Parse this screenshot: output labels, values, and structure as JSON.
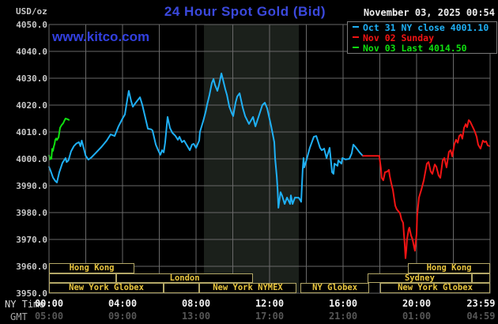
{
  "header": {
    "unit": "USD/oz",
    "title": "24 Hour Spot Gold (Bid)",
    "website": "www.kitco.com",
    "datetime": "November 03, 2025 00:54"
  },
  "legend": {
    "items": [
      {
        "label": "Oct 31 NY close 4001.10",
        "color": "#1fb0f5"
      },
      {
        "label": "Nov 02 Sunday",
        "color": "#f21414"
      },
      {
        "label": "Nov 03 Last 4014.50",
        "color": "#10df10"
      }
    ]
  },
  "colors": {
    "grid": "#696969",
    "band": "#1b201b",
    "session_border": "#b3a767",
    "session_text": "#eac63e",
    "legend_border": "#787878"
  },
  "band": {
    "start_h": 8.43,
    "end_h": 13.59
  },
  "axes": {
    "y": {
      "min": 3950,
      "max": 4050,
      "step": 10,
      "ticks": [
        {
          "label": "4050.0",
          "value": 4050
        },
        {
          "label": "4040.0",
          "value": 4040
        },
        {
          "label": "4030.0",
          "value": 4030
        },
        {
          "label": "4020.0",
          "value": 4020
        },
        {
          "label": "4010.0",
          "value": 4010
        },
        {
          "label": "4000.0",
          "value": 4000
        },
        {
          "label": "3990.0",
          "value": 3990
        },
        {
          "label": "3980.0",
          "value": 3980
        },
        {
          "label": "3970.0",
          "value": 3970
        },
        {
          "label": "3960.0",
          "value": 3960
        },
        {
          "label": "3950.0",
          "value": 3950
        }
      ]
    },
    "x": {
      "ny_caption": "NY Time",
      "gmt_caption": "GMT",
      "ticks": [
        {
          "ny": "00:00",
          "gmt": "05:00",
          "h": 0
        },
        {
          "ny": "04:00",
          "gmt": "09:00",
          "h": 4
        },
        {
          "ny": "08:00",
          "gmt": "13:00",
          "h": 8
        },
        {
          "ny": "12:00",
          "gmt": "17:00",
          "h": 12
        },
        {
          "ny": "16:00",
          "gmt": "21:00",
          "h": 16
        },
        {
          "ny": "20:00",
          "gmt": "01:00",
          "h": 20
        },
        {
          "ny": "23:59",
          "gmt": "04:59",
          "h": 23.983,
          "label_h": 23.5
        }
      ]
    }
  },
  "sessions": {
    "rows": [
      {
        "boxes": [
          {
            "label": "Hong Kong",
            "h1": 0,
            "h2": 4.65
          },
          {
            "label": "Hong Kong",
            "h1": 19.53,
            "h2": 24
          }
        ]
      },
      {
        "boxes": [
          {
            "label": "",
            "h1": 0,
            "h2": 3.66
          },
          {
            "label": "London",
            "h1": 3.66,
            "h2": 11.1
          },
          {
            "label": "Sydney",
            "h1": 17.33,
            "h2": 23.01
          },
          {
            "label": "",
            "h1": 23.01,
            "h2": 24
          }
        ]
      },
      {
        "boxes": [
          {
            "label": "New York Globex",
            "h1": 0,
            "h2": 6.24
          },
          {
            "label": "",
            "h1": 6.24,
            "h2": 8.17
          },
          {
            "label": "New York NYMEX",
            "h1": 8.17,
            "h2": 13.46
          },
          {
            "label": "NY Globex",
            "h1": 13.68,
            "h2": 17.42
          },
          {
            "label": "New York Globex",
            "h1": 18.02,
            "h2": 24
          }
        ]
      }
    ]
  },
  "chart_data": {
    "type": "line",
    "title": "24 Hour Spot Gold (Bid)",
    "ylabel": "USD/oz",
    "ylim": [
      3950,
      4050
    ],
    "xlim_hours": [
      0,
      24
    ],
    "x_unit": "NY time (hours)",
    "series": [
      {
        "name": "Oct 31 NY close 4001.10",
        "color": "#1fb0f5",
        "points": [
          [
            0,
            3997
          ],
          [
            0.09,
            3995.5
          ],
          [
            0.22,
            3993
          ],
          [
            0.34,
            3991.8
          ],
          [
            0.43,
            3991.2
          ],
          [
            0.56,
            3995
          ],
          [
            0.73,
            3998.5
          ],
          [
            0.9,
            4000.3
          ],
          [
            0.96,
            3998.8
          ],
          [
            1.06,
            3999.4
          ],
          [
            1.2,
            4002.8
          ],
          [
            1.35,
            4004.7
          ],
          [
            1.49,
            4005.7
          ],
          [
            1.63,
            4006.2
          ],
          [
            1.71,
            4004.7
          ],
          [
            1.78,
            4006.8
          ],
          [
            1.92,
            4003.2
          ],
          [
            1.99,
            4001.2
          ],
          [
            2.14,
            3999.7
          ],
          [
            2.3,
            4000.5
          ],
          [
            2.57,
            4002.4
          ],
          [
            2.85,
            4004.4
          ],
          [
            3.14,
            4006.8
          ],
          [
            3.35,
            4009.1
          ],
          [
            3.57,
            4008.5
          ],
          [
            3.78,
            4012.1
          ],
          [
            4,
            4015
          ],
          [
            4.13,
            4016.5
          ],
          [
            4.26,
            4022
          ],
          [
            4.34,
            4025.3
          ],
          [
            4.47,
            4021.5
          ],
          [
            4.56,
            4019.4
          ],
          [
            4.73,
            4021
          ],
          [
            4.95,
            4022.9
          ],
          [
            5.08,
            4020
          ],
          [
            5.2,
            4016.5
          ],
          [
            5.38,
            4011.2
          ],
          [
            5.55,
            4011
          ],
          [
            5.63,
            4010.6
          ],
          [
            5.81,
            4005.3
          ],
          [
            5.94,
            4003.2
          ],
          [
            6.06,
            4001.5
          ],
          [
            6.15,
            4003.2
          ],
          [
            6.24,
            4002.4
          ],
          [
            6.32,
            4006
          ],
          [
            6.45,
            4015.6
          ],
          [
            6.58,
            4011.5
          ],
          [
            6.71,
            4009.7
          ],
          [
            6.88,
            4008.5
          ],
          [
            7.01,
            4007.1
          ],
          [
            7.1,
            4008.2
          ],
          [
            7.23,
            4006.2
          ],
          [
            7.35,
            4006.8
          ],
          [
            7.53,
            4004.7
          ],
          [
            7.66,
            4003.2
          ],
          [
            7.78,
            4005.3
          ],
          [
            7.87,
            4005.6
          ],
          [
            8,
            4004.1
          ],
          [
            8.17,
            4006.8
          ],
          [
            8.21,
            4010
          ],
          [
            8.39,
            4014.1
          ],
          [
            8.52,
            4017.4
          ],
          [
            8.6,
            4020
          ],
          [
            8.73,
            4023.8
          ],
          [
            8.86,
            4028.2
          ],
          [
            8.95,
            4029.7
          ],
          [
            9.03,
            4027.6
          ],
          [
            9.16,
            4025.3
          ],
          [
            9.25,
            4027.6
          ],
          [
            9.38,
            4031.8
          ],
          [
            9.46,
            4029.7
          ],
          [
            9.59,
            4025.9
          ],
          [
            9.68,
            4023.8
          ],
          [
            9.81,
            4019.4
          ],
          [
            9.94,
            4017.1
          ],
          [
            10.02,
            4015.9
          ],
          [
            10.15,
            4020.9
          ],
          [
            10.24,
            4023.2
          ],
          [
            10.37,
            4024.4
          ],
          [
            10.54,
            4019
          ],
          [
            10.67,
            4015.9
          ],
          [
            10.88,
            4013
          ],
          [
            11.1,
            4015.6
          ],
          [
            11.23,
            4012.1
          ],
          [
            11.61,
            4020
          ],
          [
            11.74,
            4020.9
          ],
          [
            11.87,
            4018.8
          ],
          [
            12.09,
            4012.1
          ],
          [
            12.26,
            4006.2
          ],
          [
            12.3,
            4000.3
          ],
          [
            12.39,
            3993.5
          ],
          [
            12.44,
            3988.5
          ],
          [
            12.48,
            3981.8
          ],
          [
            12.6,
            3987.6
          ],
          [
            12.69,
            3986.2
          ],
          [
            12.82,
            3983.2
          ],
          [
            12.95,
            3985.6
          ],
          [
            13.12,
            3983.2
          ],
          [
            13.16,
            3986.4
          ],
          [
            13.25,
            3983.2
          ],
          [
            13.38,
            3985.6
          ],
          [
            13.59,
            3985.5
          ],
          [
            13.72,
            3984
          ],
          [
            13.8,
            3996
          ],
          [
            13.85,
            4000.3
          ],
          [
            13.89,
            3996.8
          ],
          [
            13.98,
            3998.8
          ],
          [
            14.19,
            4004.1
          ],
          [
            14.41,
            4008.2
          ],
          [
            14.54,
            4008.5
          ],
          [
            14.75,
            4004.1
          ],
          [
            14.84,
            4003.2
          ],
          [
            14.97,
            4003.8
          ],
          [
            15.1,
            4000.3
          ],
          [
            15.27,
            4004.1
          ],
          [
            15.4,
            3995
          ],
          [
            15.48,
            3994.4
          ],
          [
            15.53,
            3998.2
          ],
          [
            15.7,
            3997.4
          ],
          [
            15.74,
            3999.4
          ],
          [
            15.91,
            3998.2
          ],
          [
            15.96,
            4000.3
          ],
          [
            16.13,
            3999.8
          ],
          [
            16.34,
            4000
          ],
          [
            16.47,
            4002
          ],
          [
            16.56,
            4005.3
          ],
          [
            16.69,
            4004.3
          ],
          [
            16.9,
            4002.4
          ],
          [
            17.08,
            4001.1
          ]
        ]
      },
      {
        "name": "Nov 02 Sunday",
        "color": "#f21414",
        "points": [
          [
            17.08,
            4001.1
          ],
          [
            17.97,
            4001.1
          ],
          [
            18.06,
            3996.5
          ],
          [
            18.1,
            3992.9
          ],
          [
            18.19,
            3992
          ],
          [
            18.28,
            3995
          ],
          [
            18.41,
            3995.3
          ],
          [
            18.49,
            3995.9
          ],
          [
            18.54,
            3993.5
          ],
          [
            18.62,
            3991
          ],
          [
            18.71,
            3988.5
          ],
          [
            18.84,
            3982.6
          ],
          [
            18.92,
            3981.2
          ],
          [
            19.01,
            3980.5
          ],
          [
            19.1,
            3979.7
          ],
          [
            19.18,
            3977.4
          ],
          [
            19.27,
            3976.2
          ],
          [
            19.31,
            3972
          ],
          [
            19.35,
            3968.5
          ],
          [
            19.4,
            3963
          ],
          [
            19.44,
            3966
          ],
          [
            19.48,
            3970
          ],
          [
            19.57,
            3973.8
          ],
          [
            19.61,
            3974.4
          ],
          [
            19.7,
            3971.5
          ],
          [
            19.78,
            3970
          ],
          [
            19.87,
            3967
          ],
          [
            19.91,
            3965.8
          ],
          [
            20,
            3972
          ],
          [
            20.03,
            3978.8
          ],
          [
            20.13,
            3985.6
          ],
          [
            20.26,
            3988.5
          ],
          [
            20.39,
            3992
          ],
          [
            20.56,
            3998.2
          ],
          [
            20.65,
            3998.8
          ],
          [
            20.77,
            3995.3
          ],
          [
            20.86,
            3994.4
          ],
          [
            20.99,
            3997.9
          ],
          [
            21.08,
            3997
          ],
          [
            21.2,
            3993.8
          ],
          [
            21.29,
            3992.9
          ],
          [
            21.42,
            3999.4
          ],
          [
            21.51,
            4000.3
          ],
          [
            21.63,
            3996.8
          ],
          [
            21.76,
            4002.6
          ],
          [
            21.85,
            4003.2
          ],
          [
            21.94,
            4000.9
          ],
          [
            22.06,
            4005.6
          ],
          [
            22.15,
            4007.1
          ],
          [
            22.24,
            4006
          ],
          [
            22.32,
            4008.5
          ],
          [
            22.41,
            4009.1
          ],
          [
            22.49,
            4007.5
          ],
          [
            22.58,
            4011.5
          ],
          [
            22.67,
            4012.9
          ],
          [
            22.75,
            4011.8
          ],
          [
            22.84,
            4014.4
          ],
          [
            22.92,
            4013.8
          ],
          [
            23.01,
            4012.5
          ],
          [
            23.1,
            4011.2
          ],
          [
            23.18,
            4010
          ],
          [
            23.27,
            4008.2
          ],
          [
            23.35,
            4005.3
          ],
          [
            23.44,
            4004.2
          ],
          [
            23.48,
            4003.8
          ],
          [
            23.61,
            4006.8
          ],
          [
            23.7,
            4006.2
          ],
          [
            23.78,
            4006.5
          ],
          [
            23.87,
            4005
          ],
          [
            23.98,
            4004.7
          ]
        ]
      },
      {
        "name": "Nov 03 Last 4014.50",
        "color": "#10df10",
        "points": [
          [
            0,
            4001.3
          ],
          [
            0.04,
            3999.8
          ],
          [
            0.09,
            4000.5
          ],
          [
            0.13,
            4000
          ],
          [
            0.17,
            4003.7
          ],
          [
            0.22,
            4003
          ],
          [
            0.26,
            4004.5
          ],
          [
            0.3,
            4005.5
          ],
          [
            0.34,
            4007.1
          ],
          [
            0.39,
            4007.6
          ],
          [
            0.43,
            4007
          ],
          [
            0.52,
            4008
          ],
          [
            0.6,
            4011.6
          ],
          [
            0.69,
            4012.6
          ],
          [
            0.77,
            4013.2
          ],
          [
            0.82,
            4014
          ],
          [
            0.9,
            4015
          ],
          [
            0.99,
            4014.8
          ],
          [
            1.08,
            4014.5
          ]
        ]
      }
    ]
  }
}
